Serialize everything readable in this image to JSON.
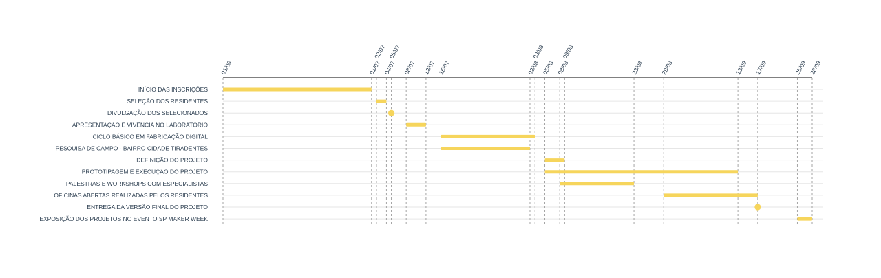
{
  "chart_data": {
    "type": "gantt",
    "bar_color": "#f6d55c",
    "axis_color": "#808080",
    "grid_color": "#e6e6e6",
    "tick_dates": [
      "01/06",
      "01/07",
      "02/07",
      "04/07",
      "05/07",
      "08/07",
      "12/07",
      "15/07",
      "02/08",
      "03/08",
      "05/08",
      "08/08",
      "09/08",
      "23/08",
      "29/08",
      "13/09",
      "17/09",
      "25/09",
      "28/09"
    ],
    "tasks": [
      {
        "label": "INÍCIO DAS INSCRIÇÕES",
        "start": "01/06",
        "end": "01/07"
      },
      {
        "label": "SELEÇÃO DOS RESIDENTES",
        "start": "02/07",
        "end": "04/07"
      },
      {
        "label": "DIVULGAÇÃO DOS SELECIONADOS",
        "start": "05/07",
        "end": "05/07",
        "milestone": true
      },
      {
        "label": "APRESENTAÇÃO E VIVÊNCIA NO LABORATÓRIO",
        "start": "08/07",
        "end": "12/07"
      },
      {
        "label": "CICLO BÁSICO EM FABRICAÇÃO DIGITAL",
        "start": "15/07",
        "end": "03/08"
      },
      {
        "label": "PESQUISA DE CAMPO - BAIRRO CIDADE TIRADENTES",
        "start": "15/07",
        "end": "02/08"
      },
      {
        "label": "DEFINIÇÃO DO PROJETO",
        "start": "05/08",
        "end": "09/08"
      },
      {
        "label": "PROTOTIPAGEM E EXECUÇÃO DO PROJETO",
        "start": "05/08",
        "end": "13/09"
      },
      {
        "label": "PALESTRAS E WORKSHOPS COM ESPECIALISTAS",
        "start": "08/08",
        "end": "23/08"
      },
      {
        "label": "OFICINAS ABERTAS REALIZADAS PELOS RESIDENTES",
        "start": "29/08",
        "end": "17/09"
      },
      {
        "label": "ENTREGA DA VERSÃO FINAL DO PROJETO",
        "start": "17/09",
        "end": "17/09",
        "milestone": true
      },
      {
        "label": "EXPOSIÇÃO DOS PROJETOS NO EVENTO SP MAKER WEEK",
        "start": "25/09",
        "end": "28/09"
      }
    ]
  }
}
